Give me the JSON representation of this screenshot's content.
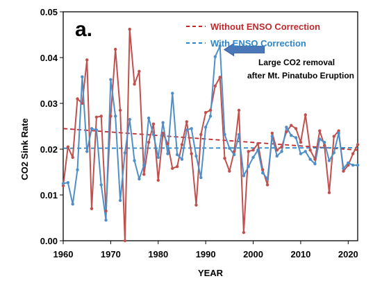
{
  "chart_data": {
    "type": "line",
    "panel_label": "a.",
    "xlabel": "YEAR",
    "ylabel": "CO2 Sink Rate",
    "xlim": [
      1960,
      2022
    ],
    "ylim": [
      0,
      0.05
    ],
    "x_ticks": [
      1960,
      1970,
      1980,
      1990,
      2000,
      2010,
      2020
    ],
    "y_ticks": [
      0.0,
      0.01,
      0.02,
      0.03,
      0.04,
      0.05
    ],
    "y_tick_labels": [
      "0.00",
      "0.01",
      "0.02",
      "0.03",
      "0.04",
      "0.05"
    ],
    "grid": false,
    "legend_position": "top-right",
    "x": [
      1960,
      1961,
      1962,
      1963,
      1964,
      1965,
      1966,
      1967,
      1968,
      1969,
      1970,
      1971,
      1972,
      1973,
      1974,
      1975,
      1976,
      1977,
      1978,
      1979,
      1980,
      1981,
      1982,
      1983,
      1984,
      1985,
      1986,
      1987,
      1988,
      1989,
      1990,
      1991,
      1992,
      1993,
      1994,
      1995,
      1996,
      1997,
      1998,
      1999,
      2000,
      2001,
      2002,
      2003,
      2004,
      2005,
      2006,
      2007,
      2008,
      2009,
      2010,
      2011,
      2012,
      2013,
      2014,
      2015,
      2016,
      2017,
      2018,
      2019,
      2020,
      2021,
      2022
    ],
    "series": [
      {
        "name": "Without ENSO Correction",
        "color": "#c0504d",
        "values": [
          0.012,
          0.0205,
          0.0182,
          0.031,
          0.03,
          0.0395,
          0.007,
          0.027,
          0.0272,
          0.0065,
          0.0272,
          0.0418,
          0.0285,
          0.0,
          0.0462,
          0.0342,
          0.037,
          0.0145,
          0.0215,
          0.0255,
          0.0132,
          0.0235,
          0.0212,
          0.0158,
          0.0162,
          0.021,
          0.026,
          0.019,
          0.0078,
          0.0232,
          0.028,
          0.0285,
          0.0338,
          0.0357,
          0.018,
          0.0152,
          0.0195,
          0.0285,
          0.0018,
          0.0195,
          0.0198,
          0.0212,
          0.0155,
          0.0122,
          0.0235,
          0.0198,
          0.0205,
          0.0238,
          0.0252,
          0.0245,
          0.0215,
          0.0275,
          0.0198,
          0.0178,
          0.024,
          0.0208,
          0.0105,
          0.0228,
          0.024,
          0.0152,
          0.0165,
          0.019,
          0.021
        ]
      },
      {
        "name": "With ENSO Correction",
        "color": "#4f8fc9",
        "values": [
          0.0125,
          0.0127,
          0.008,
          0.0155,
          0.0358,
          0.0195,
          0.0245,
          0.0242,
          0.0122,
          0.0045,
          0.0352,
          0.0272,
          0.0088,
          0.0192,
          0.0265,
          0.0175,
          0.0135,
          0.0165,
          0.0268,
          0.0232,
          0.0182,
          0.0258,
          0.019,
          0.0322,
          0.0188,
          0.0178,
          0.0242,
          0.0245,
          0.0185,
          0.0138,
          0.0248,
          0.0272,
          0.0402,
          0.0425,
          0.0232,
          0.0202,
          0.0188,
          0.0232,
          0.0142,
          0.0162,
          0.0182,
          0.0198,
          0.0148,
          0.0135,
          0.0228,
          0.0185,
          0.0195,
          0.0248,
          0.023,
          0.0225,
          0.019,
          0.0195,
          0.0178,
          0.0168,
          0.0222,
          0.0215,
          0.0175,
          0.0192,
          0.0235,
          0.0158,
          0.017,
          0.0165,
          0.0165
        ]
      },
      {
        "name": "Without ENSO Correction trend",
        "style": "dashed",
        "color": "#c0282b",
        "x": [
          1960,
          2022
        ],
        "values": [
          0.0245,
          0.0198
        ]
      },
      {
        "name": "With ENSO Correction trend",
        "style": "dashed",
        "color": "#2e86c8",
        "x": [
          1960,
          2022
        ],
        "values": [
          0.0202,
          0.0203
        ]
      }
    ],
    "legend": [
      {
        "label": "Without ENSO Correction",
        "color": "#c0282b"
      },
      {
        "label": "With ENSO Correction",
        "color": "#2e86c8"
      }
    ],
    "annotation": {
      "lines": [
        "Large CO2 removal",
        "after Mt. Pinatubo Eruption"
      ],
      "arrow_target": {
        "x": 1993,
        "y": 0.0425
      },
      "arrow_color": "#4a78b8"
    }
  }
}
